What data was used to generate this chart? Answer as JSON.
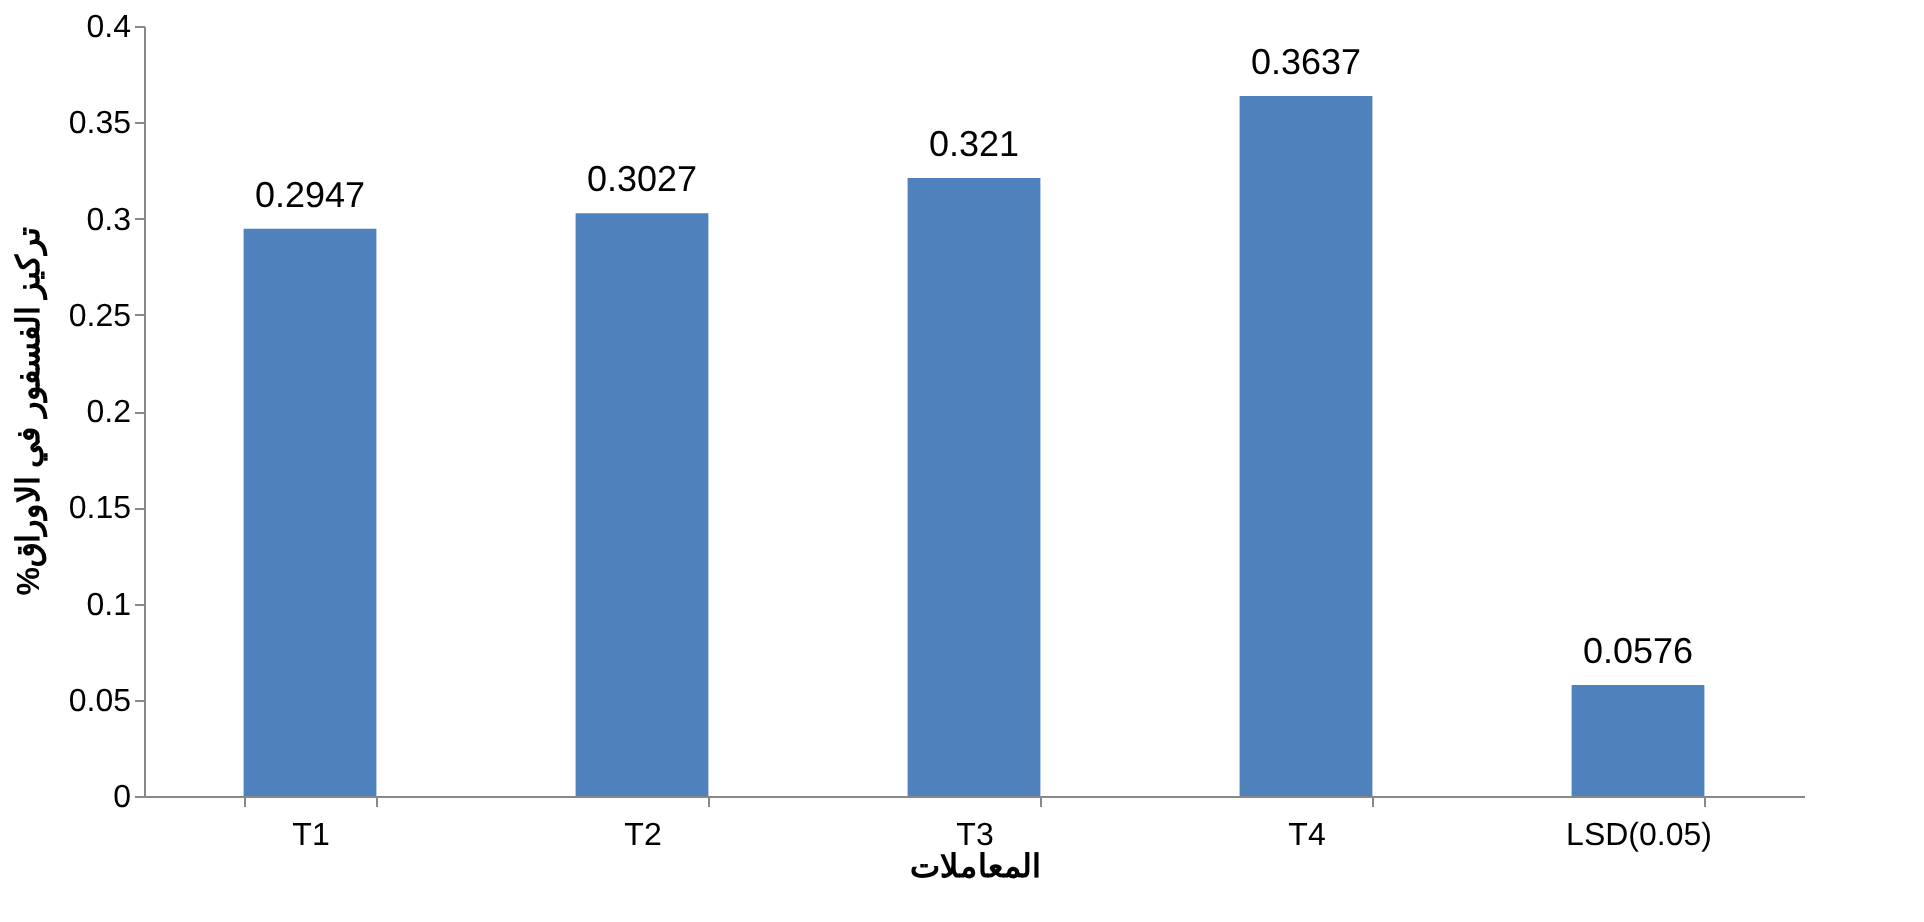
{
  "chart_data": {
    "type": "bar",
    "xlabel": "المعاملات",
    "ylabel": "%تركيز الفسفور في الاوراق",
    "categories": [
      "T1",
      "T2",
      "T3",
      "T4",
      "LSD(0.05)"
    ],
    "values": [
      0.2947,
      0.3027,
      0.321,
      0.3637,
      0.0576
    ],
    "color": "#4f81bd",
    "ylim": [
      0,
      0.4
    ],
    "yticks": [
      0,
      0.05,
      0.1,
      0.15,
      0.2,
      0.25,
      0.3,
      0.35,
      0.4
    ],
    "data_labels": true
  }
}
